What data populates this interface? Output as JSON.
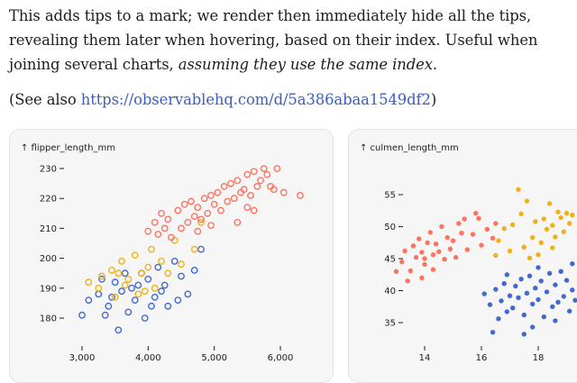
{
  "article": {
    "paragraph1": "This adds tips to a mark; we render then immediately hide all the tips, revealing them later when hovering, based on their index. Useful when joining several charts, ",
    "paragraph1_emphasis": "assuming they use the same index.",
    "see_also_prefix": "(See also ",
    "see_also_link": "https://observablehq.com/d/5a386abaa1549df2",
    "see_also_suffix": ")"
  },
  "colors": {
    "blue": "#4269d0",
    "yellow": "#efb118",
    "red": "#ff725c",
    "link": "#3b5fc0"
  },
  "chart_data": [
    {
      "type": "scatter",
      "ylabel": "↑ flipper_length_mm",
      "xlabel": "",
      "xlim": [
        2700,
        6300
      ],
      "ylim": [
        172,
        233
      ],
      "xticks": [
        3000,
        4000,
        5000,
        6000
      ],
      "xtick_labels": [
        "3,000",
        "4,000",
        "5,000",
        "6,000"
      ],
      "yticks": [
        180,
        190,
        200,
        210,
        220,
        230
      ],
      "ytick_labels": [
        "180",
        "190",
        "200",
        "210",
        "220",
        "230"
      ],
      "marker": "hollow-circle",
      "series": [
        {
          "color": "#4269d0",
          "points": [
            [
              3100,
              186
            ],
            [
              3250,
              188
            ],
            [
              3400,
              184
            ],
            [
              3500,
              192
            ],
            [
              3600,
              189
            ],
            [
              3700,
              182
            ],
            [
              3750,
              190
            ],
            [
              3800,
              186
            ],
            [
              3900,
              195
            ],
            [
              3950,
              180
            ],
            [
              4000,
              193
            ],
            [
              4100,
              187
            ],
            [
              4150,
              197
            ],
            [
              4250,
              191
            ],
            [
              4300,
              184
            ],
            [
              4400,
              199
            ],
            [
              4500,
              194
            ],
            [
              4600,
              188
            ],
            [
              4700,
              196
            ],
            [
              4800,
              203
            ],
            [
              3000,
              181
            ],
            [
              3300,
              193
            ],
            [
              3550,
              176
            ],
            [
              3850,
              191
            ],
            [
              4200,
              189
            ],
            [
              4450,
              186
            ],
            [
              3650,
              195
            ],
            [
              3350,
              181
            ],
            [
              3450,
              187
            ],
            [
              4050,
              184
            ]
          ]
        },
        {
          "color": "#efb118",
          "points": [
            [
              3100,
              192
            ],
            [
              3300,
              194
            ],
            [
              3450,
              196
            ],
            [
              3500,
              187
            ],
            [
              3600,
              199
            ],
            [
              3650,
              191
            ],
            [
              3700,
              193
            ],
            [
              3800,
              201
            ],
            [
              3900,
              195
            ],
            [
              3950,
              189
            ],
            [
              4000,
              197
            ],
            [
              4050,
              203
            ],
            [
              4100,
              190
            ],
            [
              4200,
              199
            ],
            [
              4300,
              195
            ],
            [
              4400,
              206
            ],
            [
              4500,
              198
            ],
            [
              4700,
              203
            ],
            [
              4800,
              212
            ],
            [
              3250,
              190
            ],
            [
              3550,
              195
            ],
            [
              3850,
              188
            ]
          ]
        },
        {
          "color": "#ff725c",
          "points": [
            [
              4000,
              209
            ],
            [
              4100,
              212
            ],
            [
              4150,
              208
            ],
            [
              4200,
              215
            ],
            [
              4250,
              210
            ],
            [
              4300,
              213
            ],
            [
              4350,
              207
            ],
            [
              4450,
              216
            ],
            [
              4500,
              210
            ],
            [
              4550,
              218
            ],
            [
              4600,
              212
            ],
            [
              4650,
              219
            ],
            [
              4700,
              214
            ],
            [
              4750,
              217
            ],
            [
              4800,
              213
            ],
            [
              4850,
              220
            ],
            [
              4900,
              215
            ],
            [
              4950,
              221
            ],
            [
              5000,
              218
            ],
            [
              5050,
              222
            ],
            [
              5100,
              216
            ],
            [
              5150,
              224
            ],
            [
              5200,
              219
            ],
            [
              5250,
              225
            ],
            [
              5300,
              220
            ],
            [
              5350,
              226
            ],
            [
              5400,
              222
            ],
            [
              5450,
              223
            ],
            [
              5500,
              228
            ],
            [
              5550,
              221
            ],
            [
              5600,
              229
            ],
            [
              5650,
              224
            ],
            [
              5700,
              226
            ],
            [
              5750,
              230
            ],
            [
              5800,
              228
            ],
            [
              5850,
              224
            ],
            [
              5950,
              230
            ],
            [
              6050,
              222
            ],
            [
              6300,
              221
            ],
            [
              5600,
              216
            ],
            [
              5350,
              212
            ],
            [
              4950,
              211
            ],
            [
              4750,
              209
            ],
            [
              5500,
              217
            ],
            [
              5900,
              223
            ]
          ]
        }
      ]
    },
    {
      "type": "scatter",
      "ylabel": "↑ culmen_length_mm",
      "xlabel": "",
      "xlim": [
        12.6,
        19.4
      ],
      "ylim": [
        32,
        57
      ],
      "xticks": [
        14,
        16,
        18
      ],
      "xtick_labels": [
        "14",
        "16",
        "18"
      ],
      "yticks": [
        35,
        40,
        45,
        50,
        55
      ],
      "ytick_labels": [
        "35",
        "40",
        "45",
        "50",
        "55"
      ],
      "marker": "filled-circle",
      "series": [
        {
          "color": "#ff725c",
          "points": [
            [
              13.2,
              44.5
            ],
            [
              13.3,
              46.2
            ],
            [
              13.5,
              43.1
            ],
            [
              13.6,
              47.0
            ],
            [
              13.7,
              45.2
            ],
            [
              13.8,
              48.1
            ],
            [
              13.9,
              46.0
            ],
            [
              14.0,
              44.1
            ],
            [
              14.1,
              47.5
            ],
            [
              14.2,
              49.1
            ],
            [
              14.3,
              45.6
            ],
            [
              14.4,
              47.3
            ],
            [
              14.5,
              46.1
            ],
            [
              14.6,
              50.0
            ],
            [
              14.7,
              44.9
            ],
            [
              14.8,
              48.3
            ],
            [
              14.9,
              46.5
            ],
            [
              15.0,
              47.8
            ],
            [
              15.1,
              45.2
            ],
            [
              15.2,
              50.5
            ],
            [
              15.3,
              49.0
            ],
            [
              15.5,
              46.4
            ],
            [
              15.7,
              48.8
            ],
            [
              15.9,
              51.3
            ],
            [
              16.0,
              47.1
            ],
            [
              16.2,
              49.6
            ],
            [
              16.5,
              50.5
            ],
            [
              13.4,
              41.5
            ],
            [
              13.9,
              42.0
            ],
            [
              14.3,
              43.3
            ],
            [
              15.4,
              51.2
            ],
            [
              15.8,
              52.1
            ],
            [
              16.4,
              48.2
            ],
            [
              14.0,
              45.0
            ],
            [
              13.0,
              43.0
            ]
          ]
        },
        {
          "color": "#efb118",
          "points": [
            [
              16.5,
              45.5
            ],
            [
              16.6,
              47.8
            ],
            [
              16.8,
              49.7
            ],
            [
              17.0,
              46.2
            ],
            [
              17.1,
              50.3
            ],
            [
              17.3,
              55.8
            ],
            [
              17.4,
              52.0
            ],
            [
              17.5,
              46.8
            ],
            [
              17.6,
              54.0
            ],
            [
              17.8,
              48.3
            ],
            [
              17.9,
              50.8
            ],
            [
              18.0,
              45.6
            ],
            [
              18.1,
              47.5
            ],
            [
              18.2,
              51.2
            ],
            [
              18.3,
              49.6
            ],
            [
              18.4,
              53.6
            ],
            [
              18.5,
              50.2
            ],
            [
              18.6,
              48.4
            ],
            [
              18.7,
              52.3
            ],
            [
              18.8,
              51.4
            ],
            [
              18.9,
              49.2
            ],
            [
              19.0,
              52.1
            ],
            [
              19.1,
              50.5
            ],
            [
              19.2,
              51.8
            ],
            [
              17.7,
              45.1
            ],
            [
              18.5,
              46.7
            ]
          ]
        },
        {
          "color": "#4269d0",
          "points": [
            [
              16.1,
              39.5
            ],
            [
              16.3,
              37.8
            ],
            [
              16.5,
              40.2
            ],
            [
              16.6,
              35.6
            ],
            [
              16.7,
              38.4
            ],
            [
              16.8,
              41.1
            ],
            [
              16.9,
              36.7
            ],
            [
              17.0,
              39.2
            ],
            [
              17.1,
              37.3
            ],
            [
              17.2,
              40.7
            ],
            [
              17.3,
              38.9
            ],
            [
              17.4,
              41.8
            ],
            [
              17.5,
              36.2
            ],
            [
              17.6,
              39.6
            ],
            [
              17.7,
              42.3
            ],
            [
              17.8,
              37.9
            ],
            [
              17.9,
              40.4
            ],
            [
              18.0,
              38.6
            ],
            [
              18.1,
              41.5
            ],
            [
              18.2,
              35.9
            ],
            [
              18.3,
              39.8
            ],
            [
              18.4,
              42.7
            ],
            [
              18.5,
              37.5
            ],
            [
              18.6,
              40.9
            ],
            [
              18.7,
              38.2
            ],
            [
              18.8,
              43.0
            ],
            [
              18.9,
              39.1
            ],
            [
              19.0,
              41.6
            ],
            [
              19.1,
              36.8
            ],
            [
              19.2,
              40.1
            ],
            [
              19.3,
              38.5
            ],
            [
              16.4,
              33.5
            ],
            [
              17.8,
              34.3
            ],
            [
              18.6,
              35.3
            ],
            [
              19.2,
              44.2
            ],
            [
              18.0,
              43.6
            ],
            [
              17.5,
              33.2
            ],
            [
              16.9,
              42.5
            ]
          ]
        }
      ]
    }
  ]
}
